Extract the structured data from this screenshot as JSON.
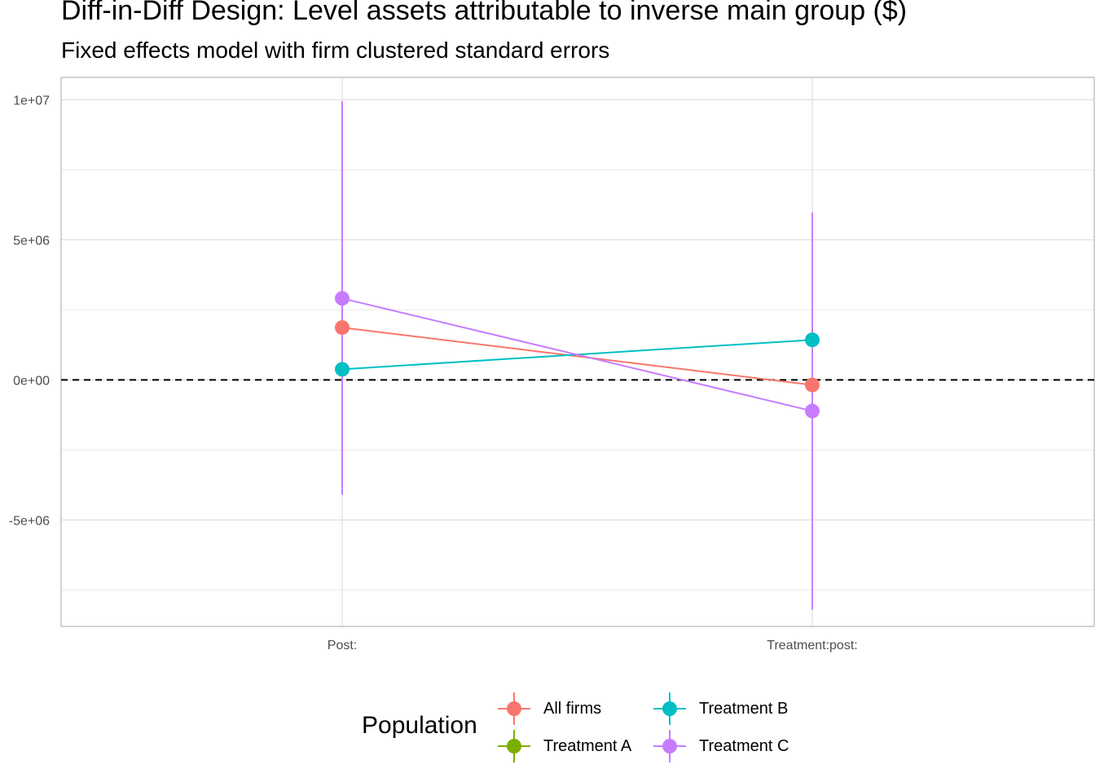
{
  "chart_data": {
    "type": "scatter",
    "title": "Diff-in-Diff Design: Level assets attributable to inverse main group  ($)",
    "subtitle": "Fixed effects model with firm clustered standard errors",
    "xlabel": "",
    "ylabel": "",
    "categories": [
      "Post:",
      "Treatment:post:"
    ],
    "ylim": [
      -8800000,
      10800000
    ],
    "y_ticks": [
      {
        "value": 10000000,
        "label": "1e+07"
      },
      {
        "value": 5000000,
        "label": "5e+06"
      },
      {
        "value": 0,
        "label": "0e+00"
      },
      {
        "value": -5000000,
        "label": "-5e+06"
      }
    ],
    "reference_line": {
      "value": 0,
      "style": "dashed"
    },
    "grid": true,
    "legend": {
      "title": "Population",
      "position": "bottom"
    },
    "series": [
      {
        "name": "All firms",
        "color": "#F8766D",
        "values": [
          1870000,
          -180000
        ],
        "lower": [
          null,
          null
        ],
        "upper": [
          null,
          null
        ]
      },
      {
        "name": "Treatment A",
        "color": "#7CAE00",
        "values": [
          null,
          null
        ],
        "lower": [
          null,
          null
        ],
        "upper": [
          null,
          null
        ]
      },
      {
        "name": "Treatment B",
        "color": "#00BFC4",
        "values": [
          380000,
          1430000
        ],
        "lower": [
          null,
          null
        ],
        "upper": [
          null,
          null
        ]
      },
      {
        "name": "Treatment C",
        "color": "#C77CFF",
        "values": [
          2910000,
          -1110000
        ],
        "lower": [
          -4100000,
          -8200000
        ],
        "upper": [
          9950000,
          5980000
        ]
      }
    ],
    "legend_order": [
      "All firms",
      "Treatment B",
      "Treatment A",
      "Treatment C"
    ]
  }
}
